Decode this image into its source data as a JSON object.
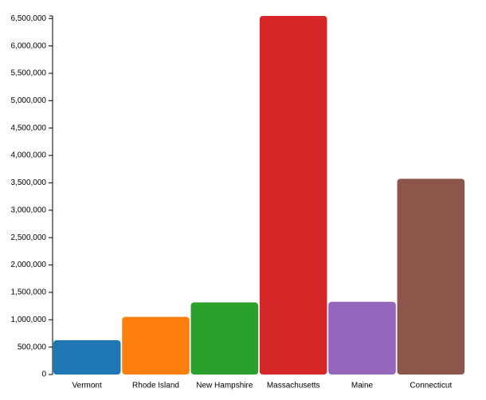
{
  "chart_data": {
    "type": "bar",
    "categories": [
      "Vermont",
      "Rhode Island",
      "New Hampshire",
      "Massachusetts",
      "Maine",
      "Connecticut"
    ],
    "values": [
      625741,
      1052567,
      1316470,
      6547629,
      1328361,
      3574097
    ],
    "colors": [
      "#1f77b4",
      "#ff7f0e",
      "#2ca02c",
      "#d62728",
      "#9467bd",
      "#8c564b"
    ],
    "ylim": [
      0,
      6547629
    ],
    "yticks": [
      0,
      {
        "value": 500000,
        "label": "500,000"
      },
      {
        "value": 1000000,
        "label": "1,000,000"
      },
      {
        "value": 1500000,
        "label": "1,500,000"
      },
      {
        "value": 2000000,
        "label": "2,000,000"
      },
      {
        "value": 2500000,
        "label": "2,500,000"
      },
      {
        "value": 3000000,
        "label": "3,000,000"
      },
      {
        "value": 3500000,
        "label": "3,500,000"
      },
      {
        "value": 4000000,
        "label": "4,000,000"
      },
      {
        "value": 4500000,
        "label": "4,500,000"
      },
      {
        "value": 5000000,
        "label": "5,000,000"
      },
      {
        "value": 5500000,
        "label": "5,500,000"
      },
      {
        "value": 6000000,
        "label": "6,000,000"
      },
      {
        "value": 6500000,
        "label": "6,500,000"
      }
    ],
    "grid": false
  }
}
